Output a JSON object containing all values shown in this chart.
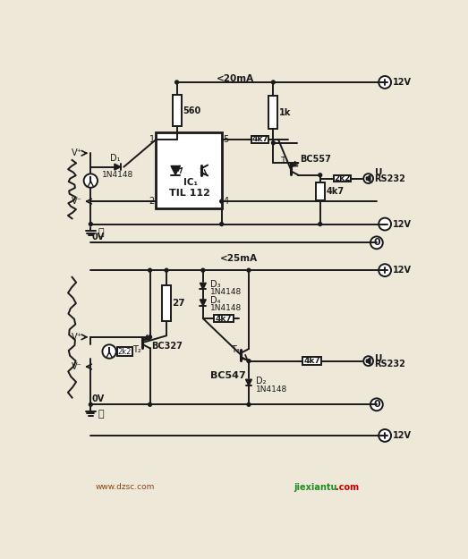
{
  "bg_color": "#ede8d8",
  "line_color": "#1a1a1a",
  "watermark_left": "www.dzsc.com",
  "watermark_right": "jiexiantu",
  "watermark_com": ".com"
}
